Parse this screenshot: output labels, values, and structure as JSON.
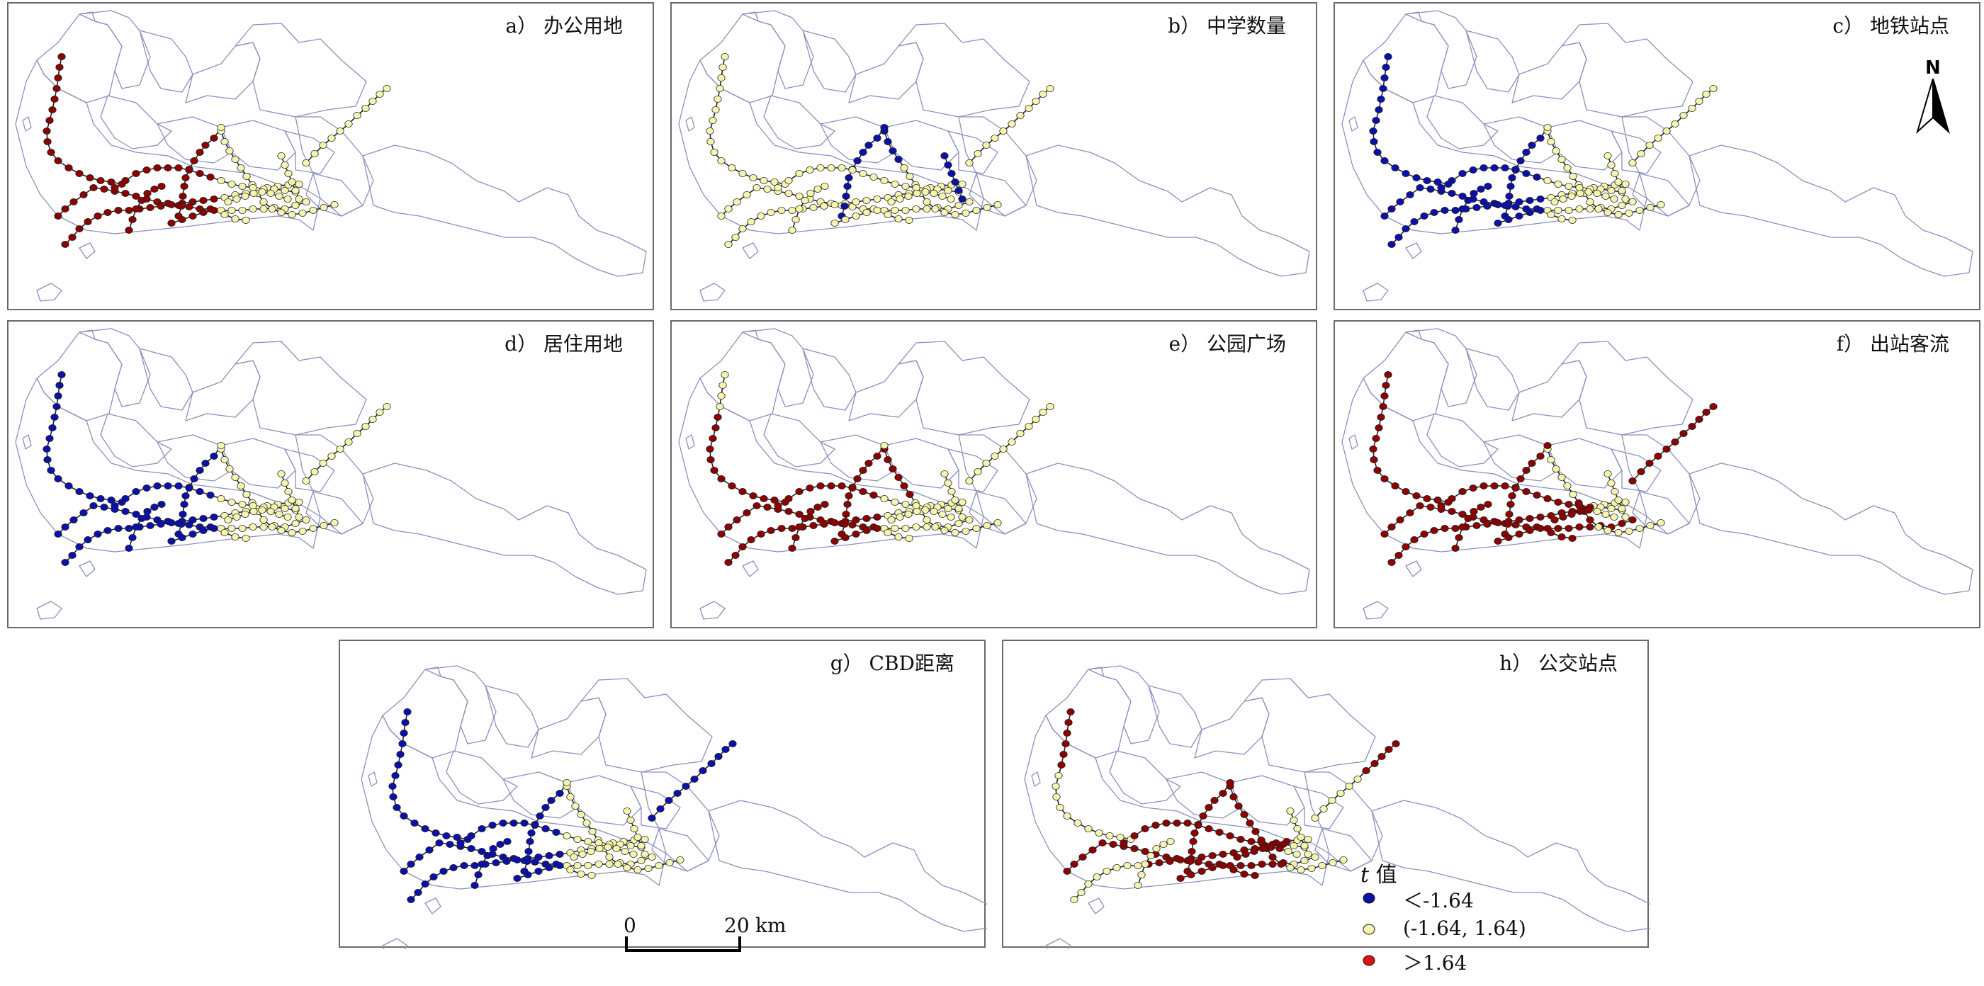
{
  "panels": [
    {
      "id": "a",
      "title": "a） 办公用地",
      "scheme": "a"
    },
    {
      "id": "b",
      "title": "b） 中学数量",
      "scheme": "b"
    },
    {
      "id": "c",
      "title": "c） 地铁站点",
      "scheme": "c"
    },
    {
      "id": "d",
      "title": "d） 居住用地",
      "scheme": "d"
    },
    {
      "id": "e",
      "title": "e） 公园广场",
      "scheme": "e"
    },
    {
      "id": "f",
      "title": "f） 出站客流",
      "scheme": "f"
    },
    {
      "id": "g",
      "title": "g） CBD距离",
      "scheme": "g"
    },
    {
      "id": "h",
      "title": "h） 公交站点",
      "scheme": "h"
    }
  ],
  "north_arrow": {
    "label": "N"
  },
  "scale_bar": {
    "start": "0",
    "end": "20",
    "unit": "km"
  },
  "legend": {
    "title_italic": "t",
    "title_rest": " 值",
    "items": [
      {
        "label": "＜-1.64",
        "color": "#0a10a8"
      },
      {
        "label": "(-1.64, 1.64)",
        "color": "#f5f5b0"
      },
      {
        "label": "＞1.64",
        "color": "#e01010"
      }
    ]
  },
  "colors": {
    "low": "#0a10a8",
    "mid": "#f5f5b0",
    "high": "#8b0000",
    "boundary": "#8a8fbf",
    "outline": "#222222"
  }
}
